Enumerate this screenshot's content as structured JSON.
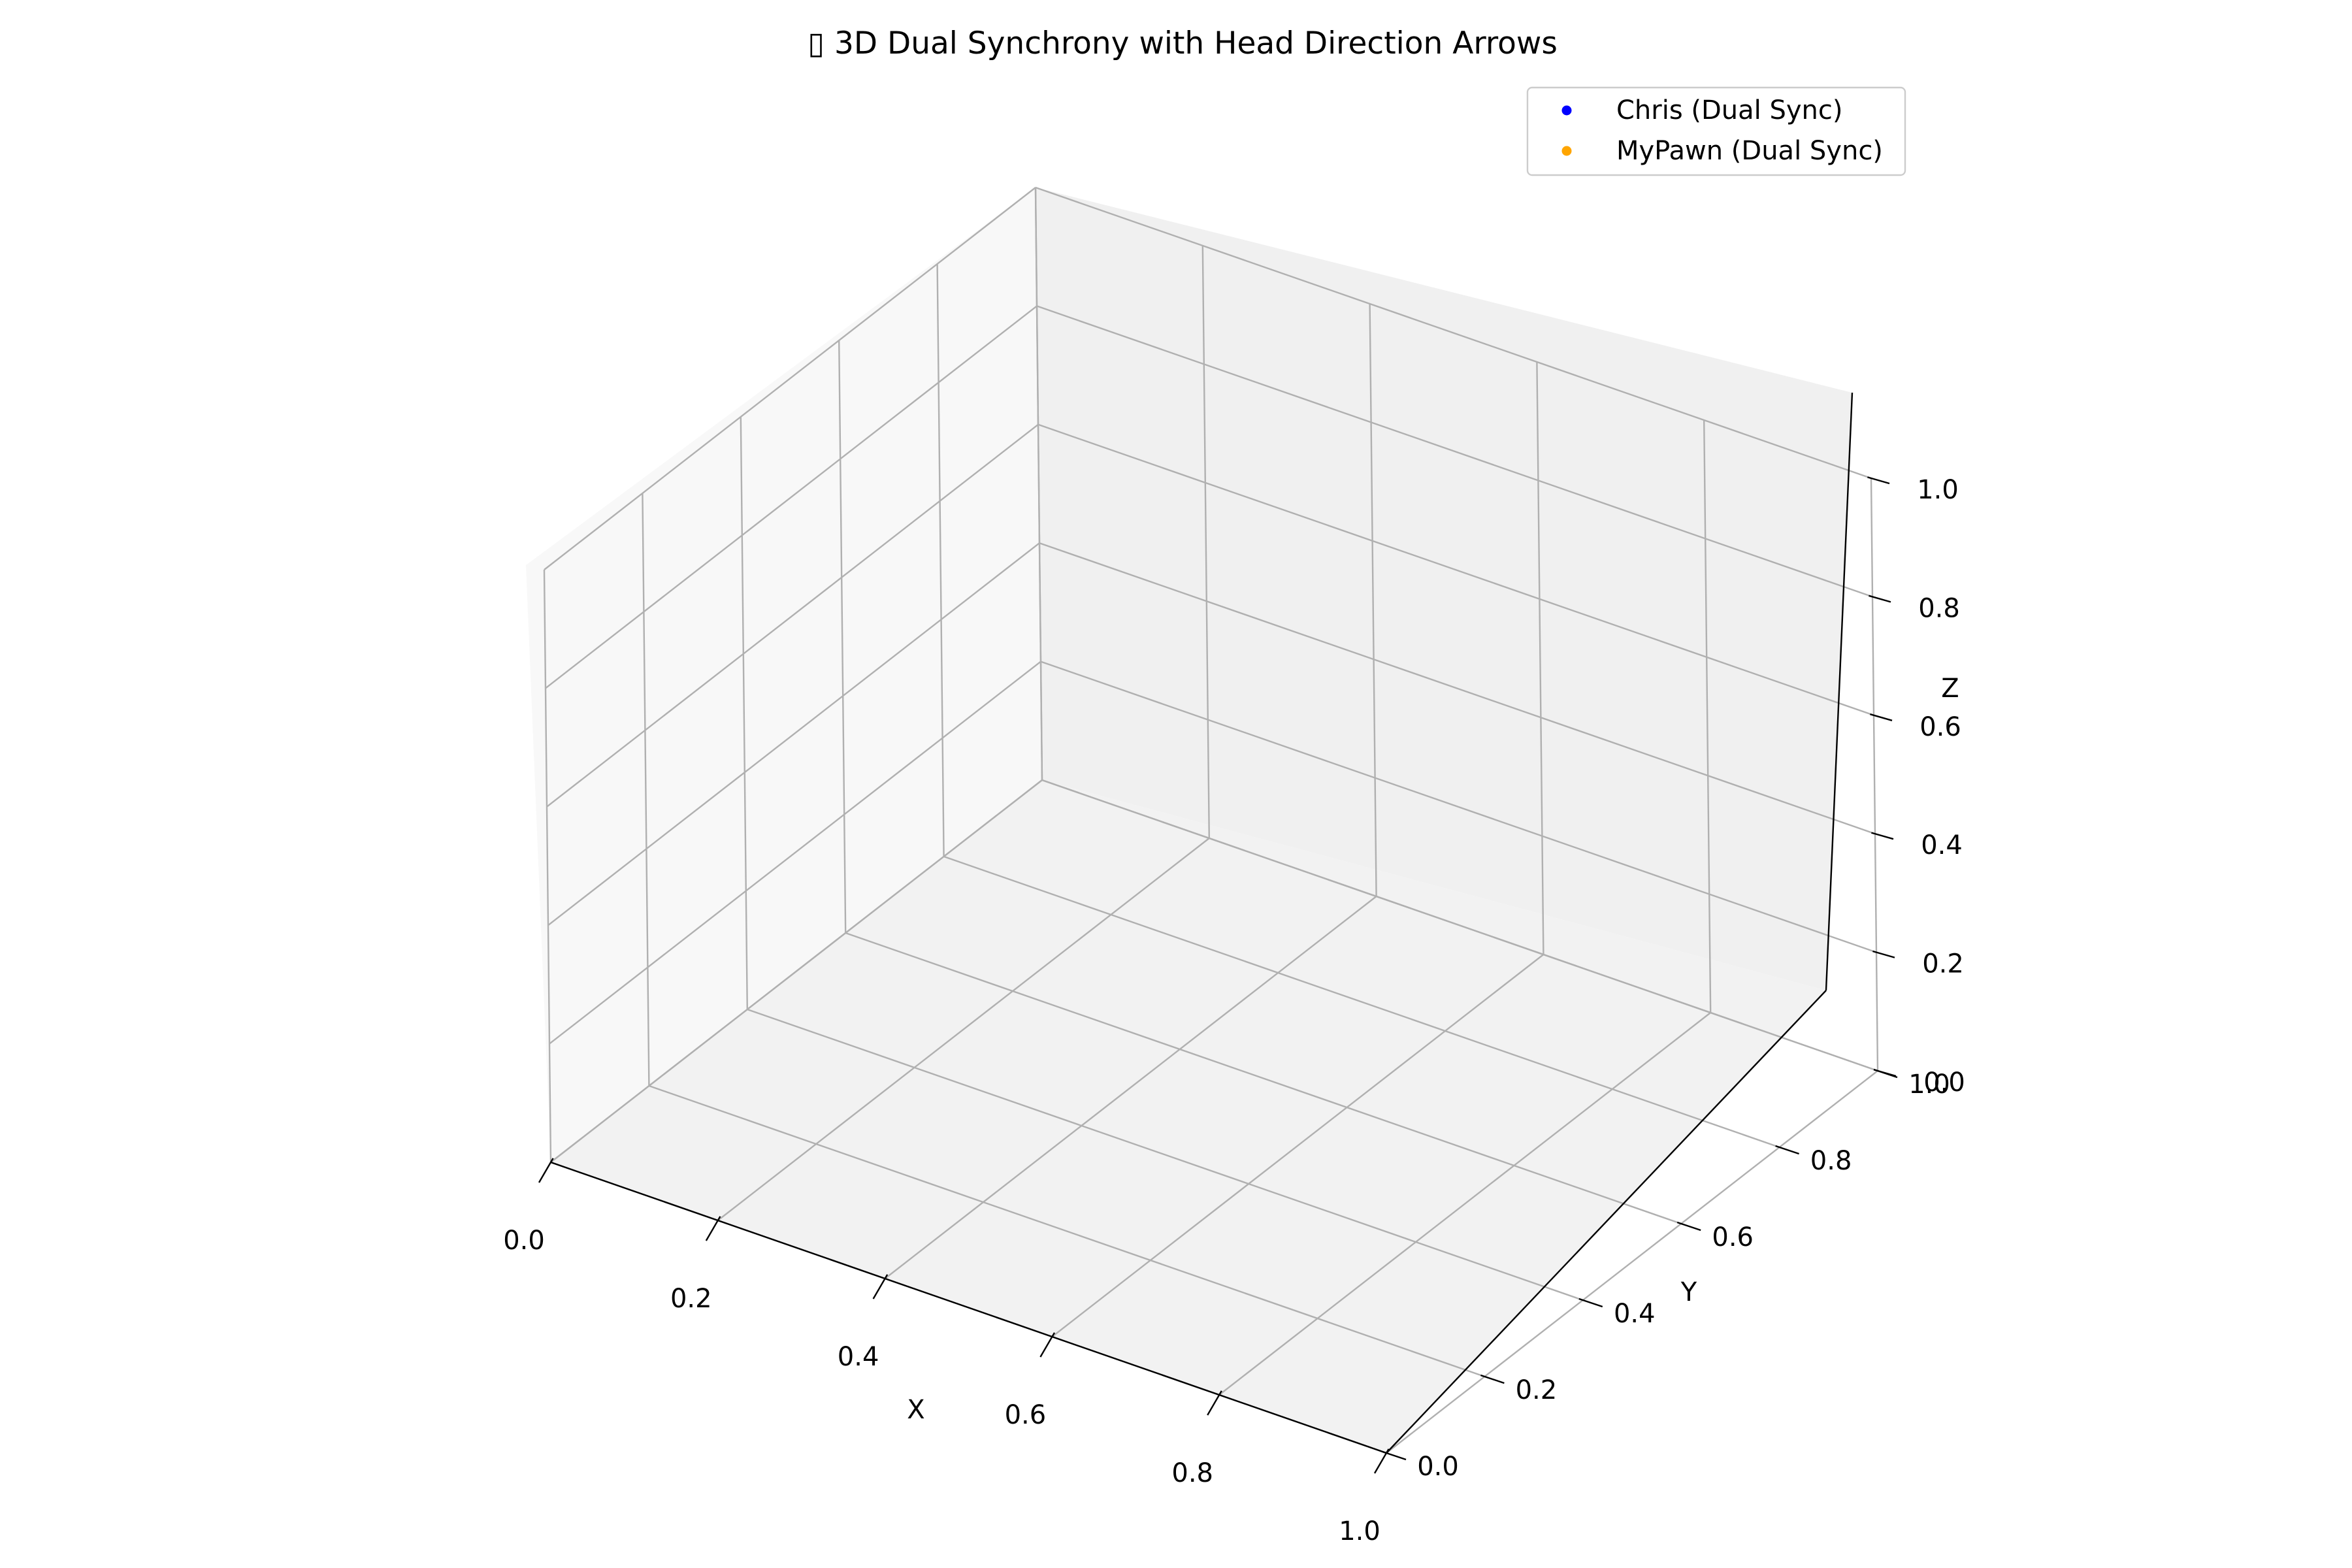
{
  "chart_data": {
    "type": "scatter",
    "projection": "3d",
    "title": "▯ 3D Dual Synchrony with Head Direction Arrows",
    "xlabel": "X",
    "ylabel": "Y",
    "zlabel": "Z",
    "xlim": [
      0.0,
      1.0
    ],
    "ylim": [
      0.0,
      1.0
    ],
    "zlim": [
      0.0,
      1.0
    ],
    "x_ticks": [
      "0.0",
      "0.2",
      "0.4",
      "0.6",
      "0.8",
      "1.0"
    ],
    "y_ticks": [
      "0.0",
      "0.2",
      "0.4",
      "0.6",
      "0.8",
      "1.0"
    ],
    "z_ticks": [
      "0.0",
      "0.2",
      "0.4",
      "0.6",
      "0.8",
      "1.0"
    ],
    "grid": true,
    "legend_position": "top-right",
    "series": [
      {
        "name": "Chris (Dual Sync)",
        "color": "#0000ff",
        "points": []
      },
      {
        "name": "MyPawn (Dual Sync)",
        "color": "#ffa500",
        "points": []
      }
    ]
  }
}
